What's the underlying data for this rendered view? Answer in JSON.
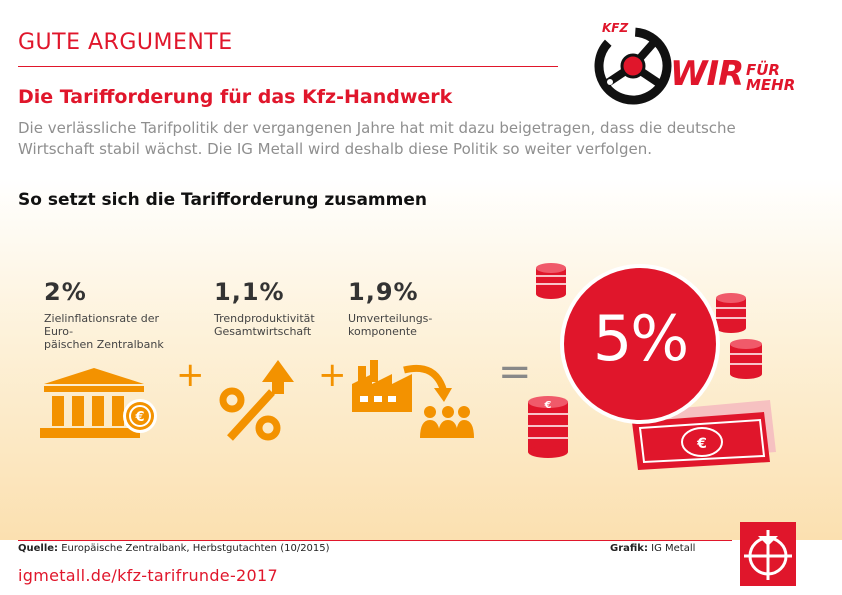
{
  "header": {
    "kicker": "GUTE ARGUMENTE",
    "title": "Die Tarifforderung für das Kfz-Handwerk",
    "intro": "Die verlässliche Tarifpolitik der vergangenen Jahre hat mit dazu beigetragen, dass die deutsche Wirtschaft stabil wächst. Die IG Metall wird deshalb diese Politik so weiter verfolgen."
  },
  "campaign_logo": {
    "tag": "KFZ",
    "word": "WIR",
    "line1": "FÜR",
    "line2": "MEHR"
  },
  "section": {
    "heading": "So setzt sich die Tarifforderung zusammen"
  },
  "components": [
    {
      "percent": "2%",
      "label_line1": "Zielinflationsrate der Euro-",
      "label_line2": "päischen Zentralbank",
      "icon": "bank-euro-icon"
    },
    {
      "percent": "1,1%",
      "label_line1": "Trendproduktivität",
      "label_line2": "Gesamtwirtschaft",
      "icon": "percent-arrow-icon"
    },
    {
      "percent": "1,9%",
      "label_line1": "Umverteilungs-",
      "label_line2": "komponente",
      "icon": "factory-people-icon"
    }
  ],
  "operators": {
    "plus": "+",
    "equals": "="
  },
  "result": {
    "percent": "5%"
  },
  "colors": {
    "red": "#e0162b",
    "orange": "#f39200",
    "text": "#333333"
  },
  "footer": {
    "source_label": "Quelle:",
    "source_text": "Europäische Zentralbank, Herbstgutachten (10/2015)",
    "credit_label": "Grafik:",
    "credit_text": "IG Metall",
    "url": "igmetall.de/kfz-tarifrunde-2017"
  }
}
